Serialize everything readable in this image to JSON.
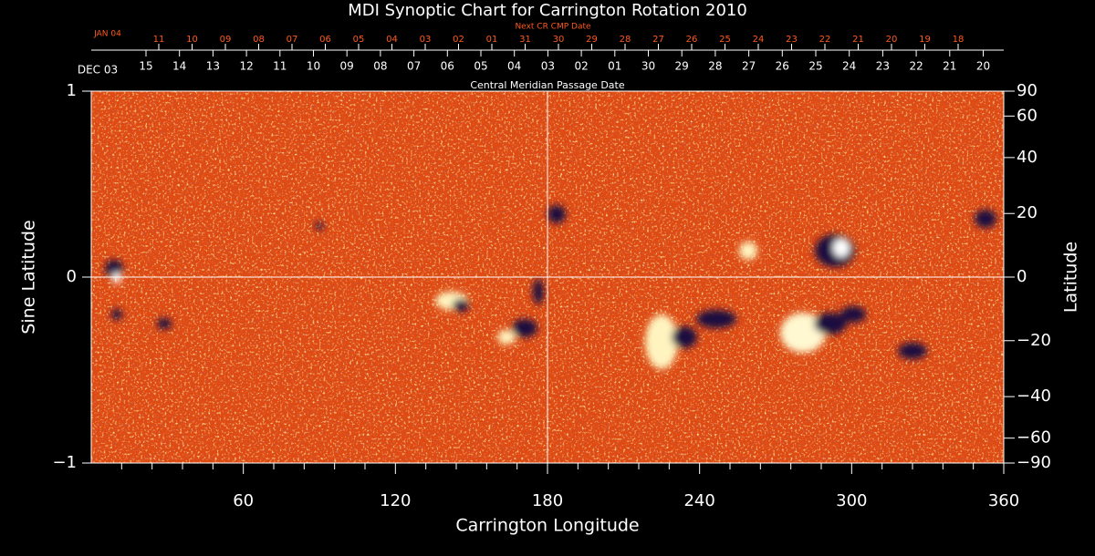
{
  "chart_data": {
    "type": "synoptic-map",
    "title": "MDI Synoptic Chart for Carrington Rotation 2010",
    "xlabel": "Carrington Longitude",
    "ylabel": "Sine Latitude",
    "y2label": "Latitude",
    "xlim": [
      0,
      360
    ],
    "xticks": [
      60,
      120,
      180,
      240,
      300,
      360
    ],
    "xminorticks": [
      12,
      24,
      36,
      48,
      72,
      84,
      96,
      108,
      132,
      144,
      156,
      168,
      192,
      204,
      216,
      228,
      252,
      264,
      276,
      288,
      312,
      324,
      336,
      348
    ],
    "ylim": [
      -1,
      1
    ],
    "yticks": [
      {
        "value": -1,
        "label": "−1"
      },
      0,
      1
    ],
    "y2lim": [
      -90,
      90
    ],
    "y2scale": "sine",
    "y2ticks": [
      {
        "value": -90,
        "label": "−90"
      },
      {
        "value": -60,
        "label": "−60"
      },
      {
        "value": -40,
        "label": "−40"
      },
      {
        "value": -20,
        "label": "−20"
      },
      0,
      20,
      40,
      60,
      90
    ],
    "crosshair": {
      "x": 180,
      "y": 0
    },
    "cmp_axis": {
      "label": "Central Meridian Passage Date",
      "month": "DEC 03",
      "days": [
        "15",
        "14",
        "13",
        "12",
        "11",
        "10",
        "09",
        "08",
        "07",
        "06",
        "05",
        "04",
        "03",
        "02",
        "01",
        "30",
        "29",
        "28",
        "27",
        "26",
        "25",
        "24",
        "23",
        "22",
        "21",
        "20"
      ]
    },
    "next_cmp_axis": {
      "label": "Next CR CMP Date",
      "month": "JAN 04",
      "days": [
        "11",
        "10",
        "09",
        "08",
        "07",
        "06",
        "05",
        "04",
        "03",
        "02",
        "01",
        "31",
        "30",
        "29",
        "28",
        "27",
        "26",
        "25",
        "24",
        "23",
        "22",
        "21",
        "20",
        "19",
        "18"
      ]
    },
    "color": "#df4a12"
  }
}
